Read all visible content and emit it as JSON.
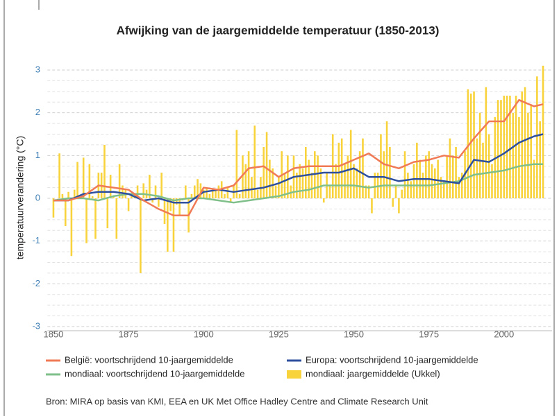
{
  "chart_data": {
    "type": "combo",
    "title": "Afwijking van de jaargemiddelde temperatuur (1850-2013)",
    "ylabel": "temperatuurverandering (°C)",
    "source": "Bron: MIRA op basis van KMI, EEA en UK Met Office Hadley Centre and Climate Research Unit",
    "xlim": [
      1848,
      2016
    ],
    "xticks": [
      1850,
      1875,
      1900,
      1925,
      1950,
      1975,
      2000
    ],
    "ylim": [
      -3,
      3
    ],
    "yticks": [
      -3,
      -2,
      -1,
      0,
      1,
      2,
      3
    ],
    "minor_yticks": [
      -2.75,
      -2.5,
      -2.25,
      -1.75,
      -1.5,
      -1.25,
      -0.75,
      -0.5,
      -0.25,
      0.25,
      0.5,
      0.75,
      1.25,
      1.5,
      1.75,
      2.25,
      2.5,
      2.75
    ],
    "grid": true,
    "series": [
      {
        "name": "mondiaal: jaargemiddelde (Ukkel)",
        "type": "bar",
        "color": "#f8d33c",
        "x": [
          1850,
          1851,
          1852,
          1853,
          1854,
          1855,
          1856,
          1857,
          1858,
          1859,
          1860,
          1861,
          1862,
          1863,
          1864,
          1865,
          1866,
          1867,
          1868,
          1869,
          1870,
          1871,
          1872,
          1873,
          1874,
          1875,
          1876,
          1877,
          1878,
          1879,
          1880,
          1881,
          1882,
          1883,
          1884,
          1885,
          1886,
          1887,
          1888,
          1889,
          1890,
          1891,
          1892,
          1893,
          1894,
          1895,
          1896,
          1897,
          1898,
          1899,
          1900,
          1901,
          1902,
          1903,
          1904,
          1905,
          1906,
          1907,
          1908,
          1909,
          1910,
          1911,
          1912,
          1913,
          1914,
          1915,
          1916,
          1917,
          1918,
          1919,
          1920,
          1921,
          1922,
          1923,
          1924,
          1925,
          1926,
          1927,
          1928,
          1929,
          1930,
          1931,
          1932,
          1933,
          1934,
          1935,
          1936,
          1937,
          1938,
          1939,
          1940,
          1941,
          1942,
          1943,
          1944,
          1945,
          1946,
          1947,
          1948,
          1949,
          1950,
          1951,
          1952,
          1953,
          1954,
          1955,
          1956,
          1957,
          1958,
          1959,
          1960,
          1961,
          1962,
          1963,
          1964,
          1965,
          1966,
          1967,
          1968,
          1969,
          1970,
          1971,
          1972,
          1973,
          1974,
          1975,
          1976,
          1977,
          1978,
          1979,
          1980,
          1981,
          1982,
          1983,
          1984,
          1985,
          1986,
          1987,
          1988,
          1989,
          1990,
          1991,
          1992,
          1993,
          1994,
          1995,
          1996,
          1997,
          1998,
          1999,
          2000,
          2001,
          2002,
          2003,
          2004,
          2005,
          2006,
          2007,
          2008,
          2009,
          2010,
          2011,
          2012,
          2013
        ],
        "values": [
          -0.45,
          0.0,
          1.05,
          0.1,
          -0.65,
          0.15,
          -1.35,
          0.2,
          0.85,
          0.0,
          0.95,
          -1.05,
          0.8,
          0.05,
          -0.95,
          0.6,
          0.6,
          1.25,
          -0.7,
          0.55,
          0.05,
          -0.95,
          0.8,
          0.3,
          0.2,
          -0.3,
          0.1,
          0.1,
          0.3,
          -1.75,
          0.35,
          0.2,
          0.55,
          -0.1,
          0.3,
          -0.2,
          0.6,
          -0.6,
          -1.25,
          -0.3,
          -1.25,
          -0.15,
          -0.4,
          -0.05,
          0.3,
          -0.8,
          0.1,
          0.3,
          0.45,
          0.35,
          0.2,
          0.25,
          0.1,
          0.2,
          0.2,
          0.3,
          0.4,
          0.1,
          0.25,
          -0.1,
          0.3,
          1.6,
          0.1,
          1.0,
          0.8,
          1.1,
          0.5,
          1.7,
          0.2,
          0.5,
          1.2,
          1.55,
          0.9,
          0.7,
          0.3,
          0.5,
          1.1,
          0.6,
          1.0,
          0.3,
          1.0,
          0.6,
          0.8,
          0.7,
          1.2,
          0.9,
          0.6,
          1.1,
          1.0,
          0.7,
          -0.1,
          0.6,
          0.3,
          1.5,
          0.8,
          1.3,
          1.4,
          0.8,
          1.0,
          1.6,
          0.8,
          0.7,
          1.1,
          1.4,
          0.3,
          0.3,
          -0.35,
          0.6,
          0.6,
          1.5,
          1.1,
          1.8,
          1.2,
          -0.2,
          0.3,
          -0.35,
          0.2,
          1.1,
          0.6,
          0.4,
          0.8,
          1.3,
          0.9,
          0.6,
          1.0,
          1.1,
          0.8,
          0.7,
          0.9,
          0.5,
          0.4,
          1.0,
          1.4,
          1.0,
          1.2,
          0.5,
          0.6,
          1.1,
          2.55,
          2.45,
          2.5,
          1.4,
          2.0,
          1.3,
          2.6,
          1.5,
          0.8,
          1.9,
          2.3,
          2.3,
          2.4,
          2.4,
          2.4,
          2.0,
          2.4,
          1.9,
          2.5,
          2.6,
          2.0,
          2.2,
          0.9,
          2.85,
          1.8,
          3.1
        ]
      },
      {
        "name": "mondiaal: voortschrijdend 10-jaargemiddelde",
        "type": "line",
        "color": "#7fbf8a",
        "x": [
          1850,
          1855,
          1860,
          1865,
          1870,
          1875,
          1880,
          1885,
          1890,
          1895,
          1900,
          1905,
          1910,
          1915,
          1920,
          1925,
          1930,
          1935,
          1940,
          1945,
          1950,
          1955,
          1960,
          1965,
          1970,
          1975,
          1980,
          1985,
          1990,
          1995,
          2000,
          2005,
          2010,
          2013
        ],
        "values": [
          -0.05,
          0.0,
          0.0,
          -0.05,
          0.05,
          0.1,
          0.1,
          0.05,
          -0.05,
          0.0,
          0.0,
          -0.05,
          -0.1,
          -0.05,
          0.0,
          0.05,
          0.15,
          0.2,
          0.3,
          0.3,
          0.3,
          0.25,
          0.3,
          0.3,
          0.3,
          0.3,
          0.35,
          0.4,
          0.55,
          0.6,
          0.65,
          0.75,
          0.8,
          0.8
        ]
      },
      {
        "name": "Europa: voortschrijdend 10-jaargemiddelde",
        "type": "line",
        "color": "#2d4f9e",
        "x": [
          1850,
          1855,
          1860,
          1865,
          1870,
          1875,
          1880,
          1885,
          1890,
          1895,
          1900,
          1905,
          1910,
          1915,
          1920,
          1925,
          1930,
          1935,
          1940,
          1945,
          1950,
          1955,
          1960,
          1965,
          1970,
          1975,
          1980,
          1985,
          1990,
          1995,
          2000,
          2005,
          2010,
          2013
        ],
        "values": [
          -0.05,
          -0.05,
          0.1,
          0.15,
          0.15,
          0.1,
          -0.05,
          0.0,
          -0.1,
          -0.1,
          0.15,
          0.2,
          0.15,
          0.2,
          0.25,
          0.35,
          0.5,
          0.55,
          0.6,
          0.6,
          0.7,
          0.5,
          0.5,
          0.4,
          0.45,
          0.45,
          0.4,
          0.35,
          0.9,
          0.85,
          1.05,
          1.3,
          1.45,
          1.5
        ]
      },
      {
        "name": "België: voortschrijdend 10-jaargemiddelde",
        "type": "line",
        "color": "#f07a55",
        "x": [
          1850,
          1855,
          1860,
          1865,
          1870,
          1875,
          1880,
          1885,
          1890,
          1895,
          1900,
          1905,
          1910,
          1915,
          1920,
          1925,
          1930,
          1935,
          1940,
          1945,
          1950,
          1955,
          1960,
          1965,
          1970,
          1975,
          1980,
          1985,
          1990,
          1995,
          2000,
          2005,
          2010,
          2013
        ],
        "values": [
          -0.05,
          -0.05,
          0.05,
          0.3,
          0.25,
          0.2,
          -0.05,
          -0.25,
          -0.4,
          -0.4,
          0.25,
          0.2,
          0.3,
          0.7,
          0.75,
          0.5,
          0.7,
          0.75,
          0.75,
          0.75,
          0.9,
          1.05,
          0.8,
          0.7,
          0.85,
          0.9,
          1.0,
          0.95,
          1.4,
          1.8,
          1.8,
          2.3,
          2.15,
          2.2
        ]
      }
    ],
    "legend_order": [
      3,
      2,
      1,
      0
    ]
  }
}
